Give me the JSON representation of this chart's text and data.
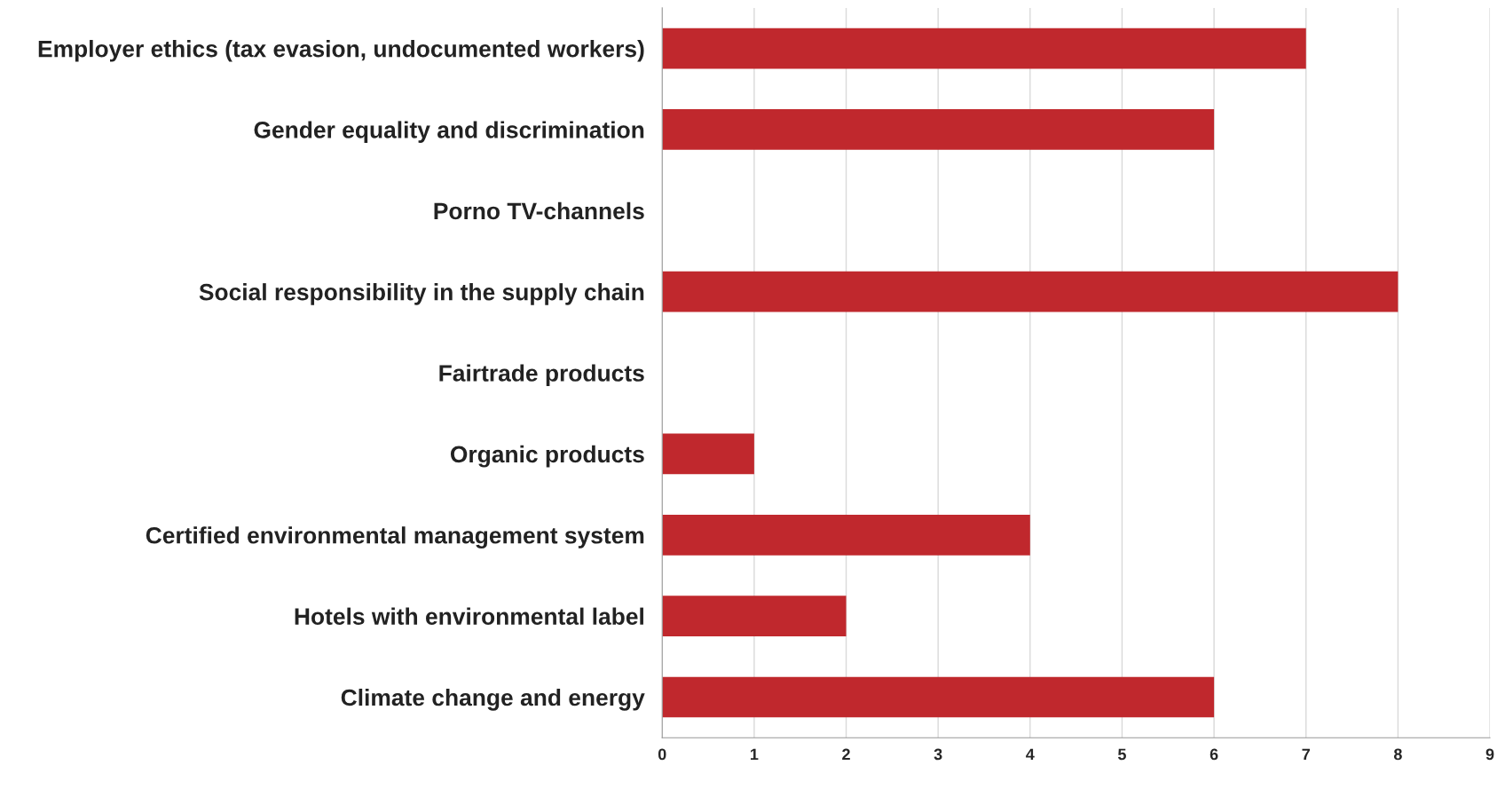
{
  "chart_data": {
    "type": "bar",
    "orientation": "horizontal",
    "categories": [
      "Employer ethics (tax evasion, undocumented workers)",
      "Gender equality and discrimination",
      "Porno TV-channels",
      "Social responsibility in the supply chain",
      "Fairtrade products",
      "Organic products",
      "Certified environmental management system",
      "Hotels with environmental label",
      "Climate change and energy"
    ],
    "values": [
      7,
      6,
      0,
      8,
      0,
      1,
      4,
      2,
      6
    ],
    "color": "#c0282d",
    "xlim": [
      0,
      9
    ],
    "xticks": [
      0,
      1,
      2,
      3,
      4,
      5,
      6,
      7,
      8,
      9
    ],
    "grid": "x"
  }
}
